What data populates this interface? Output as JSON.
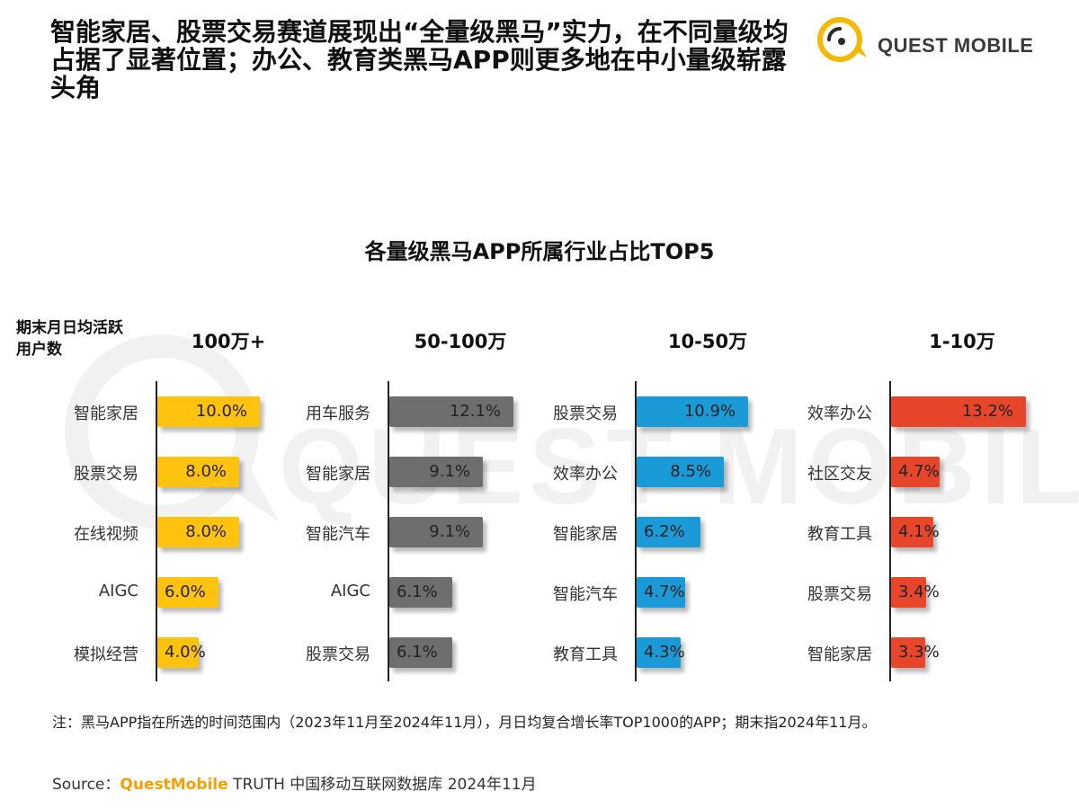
{
  "headline": "智能家居、股票交易赛道展现出“全量级黑马”实力，在不同量级均占据了显著位置；办公、教育类黑马APP则更多地在中小量级崭露头角",
  "logo": {
    "text": "QUEST MOBILE"
  },
  "watermark": {
    "text": "QUEST MOBILE"
  },
  "colors": {
    "yellow": "#ffc20e",
    "gray": "#6e6e6e",
    "blue": "#1a9ad6",
    "red": "#e8462a"
  },
  "chart_data": {
    "type": "bar",
    "title": "各量级黑马APP所属行业占比TOP5",
    "ylabel": "期末月日均活跃用户数",
    "groups": [
      {
        "name": "100万+",
        "color": "#ffc20e",
        "categories": [
          "智能家居",
          "股票交易",
          "在线视频",
          "AIGC",
          "模拟经营"
        ],
        "values": [
          10.0,
          8.0,
          8.0,
          6.0,
          4.0
        ],
        "labels": [
          "10.0%",
          "8.0%",
          "8.0%",
          "6.0%",
          "4.0%"
        ]
      },
      {
        "name": "50-100万",
        "color": "#6e6e6e",
        "categories": [
          "用车服务",
          "智能家居",
          "智能汽车",
          "AIGC",
          "股票交易"
        ],
        "values": [
          12.1,
          9.1,
          9.1,
          6.1,
          6.1
        ],
        "labels": [
          "12.1%",
          "9.1%",
          "9.1%",
          "6.1%",
          "6.1%"
        ]
      },
      {
        "name": "10-50万",
        "color": "#1a9ad6",
        "categories": [
          "股票交易",
          "效率办公",
          "智能家居",
          "智能汽车",
          "教育工具"
        ],
        "values": [
          10.9,
          8.5,
          6.2,
          4.7,
          4.3
        ],
        "labels": [
          "10.9%",
          "8.5%",
          "6.2%",
          "4.7%",
          "4.3%"
        ]
      },
      {
        "name": "1-10万",
        "color": "#e8462a",
        "categories": [
          "效率办公",
          "社区交友",
          "教育工具",
          "股票交易",
          "智能家居"
        ],
        "values": [
          13.2,
          4.7,
          4.1,
          3.4,
          3.3
        ],
        "labels": [
          "13.2%",
          "4.7%",
          "4.1%",
          "3.4%",
          "3.3%"
        ]
      }
    ]
  },
  "note": "注：黑马APP指在所选的时间范围内（2023年11月至2024年11月），月日均复合增长率TOP1000的APP；期末指2024年11月。",
  "source": {
    "prefix": "Source：",
    "brand": "QuestMobile",
    "rest": " TRUTH 中国移动互联网数据库 2024年11月"
  }
}
